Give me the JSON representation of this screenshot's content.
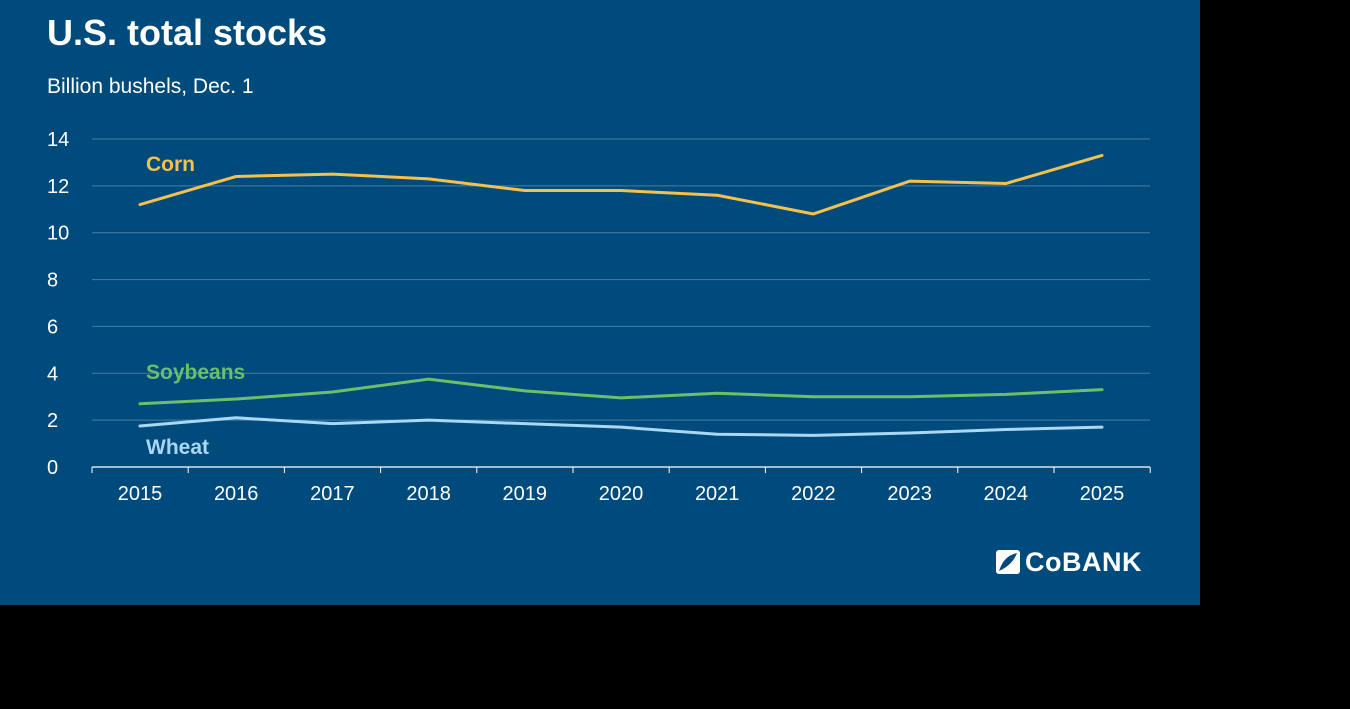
{
  "chart_data": {
    "type": "line",
    "title": "U.S. total stocks",
    "subtitle": "Billion bushels, Dec. 1",
    "xlabel": "",
    "ylabel": "",
    "x": [
      "2015",
      "2016",
      "2017",
      "2018",
      "2019",
      "2020",
      "2021",
      "2022",
      "2023",
      "2024",
      "2025"
    ],
    "ylim": [
      0,
      14
    ],
    "yticks": [
      "0",
      "2",
      "4",
      "8",
      "10",
      "12",
      "14"
    ],
    "yticks_all": [
      "0",
      "2",
      "4",
      "6",
      "8",
      "10",
      "12",
      "14"
    ],
    "grid": true,
    "legend": "inline labels",
    "series": [
      {
        "name": "Corn",
        "color": "#f2c14e",
        "values": [
          11.2,
          12.4,
          12.5,
          12.3,
          11.8,
          11.8,
          11.6,
          10.8,
          12.2,
          12.1,
          13.3
        ]
      },
      {
        "name": "Soybeans",
        "color": "#6cbf6a",
        "values": [
          2.7,
          2.9,
          3.2,
          3.75,
          3.25,
          2.95,
          3.15,
          3.0,
          3.0,
          3.1,
          3.3
        ]
      },
      {
        "name": "Wheat",
        "color": "#a9d8f5",
        "values": [
          1.75,
          2.1,
          1.85,
          2.0,
          1.85,
          1.7,
          1.4,
          1.35,
          1.45,
          1.6,
          1.7
        ]
      }
    ]
  },
  "logo": {
    "text": "CoBANK",
    "icon": "cobank-leaf-icon"
  },
  "colors": {
    "background": "#004b7c",
    "gridline": "#4a7ba3",
    "axis": "#ffffff"
  }
}
